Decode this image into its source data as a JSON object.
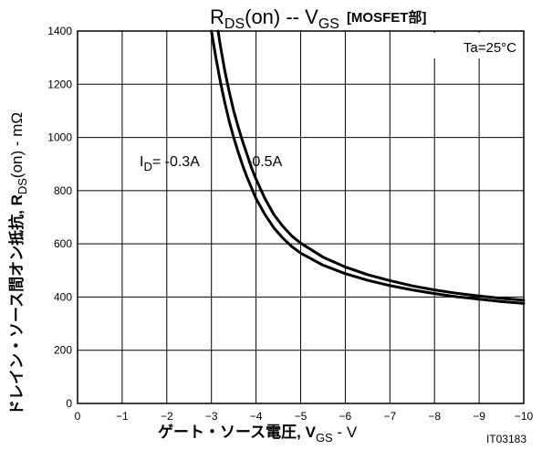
{
  "chart_data": {
    "type": "line",
    "title": {
      "main": "R",
      "main_sub": "DS",
      "main_after": "(on)  --  V",
      "main_sub2": "GS",
      "bracket": "[MOSFET部]"
    },
    "xlabel": {
      "main": "ゲート・ソース電圧, V",
      "sub": "GS",
      "after": " - V"
    },
    "ylabel": {
      "main": "ドレイン・ソース間オン抵抗, R",
      "sub": "DS",
      "after": "(on) - mΩ"
    },
    "figure_id": "IT03183",
    "condition": "Ta=25°C",
    "xlim": [
      0,
      -10
    ],
    "ylim": [
      0,
      1400
    ],
    "x_ticks": [
      "0",
      "−1",
      "−2",
      "−3",
      "−4",
      "−5",
      "−6",
      "−7",
      "−8",
      "−9",
      "−10"
    ],
    "y_ticks": [
      "0",
      "200",
      "400",
      "600",
      "800",
      "1000",
      "1200",
      "1400"
    ],
    "grid": true,
    "series": [
      {
        "name": "-0.3A",
        "label_prefix": "I",
        "label_sub": "D",
        "label_text": "= -0.3A",
        "x": [
          -3.0,
          -3.1,
          -3.2,
          -3.3,
          -3.4,
          -3.5,
          -3.6,
          -3.7,
          -3.8,
          -3.9,
          -4.0,
          -4.2,
          -4.4,
          -4.6,
          -4.8,
          -5.0,
          -5.5,
          -6.0,
          -6.5,
          -7.0,
          -7.5,
          -8.0,
          -8.5,
          -9.0,
          -9.5,
          -10.0
        ],
        "y": [
          1400,
          1300,
          1210,
          1130,
          1060,
          1000,
          945,
          895,
          850,
          810,
          770,
          710,
          660,
          622,
          590,
          565,
          520,
          488,
          463,
          443,
          427,
          413,
          401,
          392,
          383,
          376
        ]
      },
      {
        "name": "-0.5A",
        "label_text": "-0.5A",
        "x": [
          -3.15,
          -3.2,
          -3.3,
          -3.4,
          -3.5,
          -3.6,
          -3.7,
          -3.8,
          -3.9,
          -4.0,
          -4.2,
          -4.4,
          -4.6,
          -4.8,
          -5.0,
          -5.5,
          -6.0,
          -6.5,
          -7.0,
          -7.5,
          -8.0,
          -8.5,
          -9.0,
          -9.5,
          -10.0
        ],
        "y": [
          1400,
          1345,
          1250,
          1170,
          1100,
          1040,
          985,
          935,
          885,
          843,
          770,
          710,
          666,
          630,
          603,
          550,
          513,
          484,
          462,
          442,
          427,
          414,
          404,
          395,
          388
        ]
      }
    ]
  }
}
